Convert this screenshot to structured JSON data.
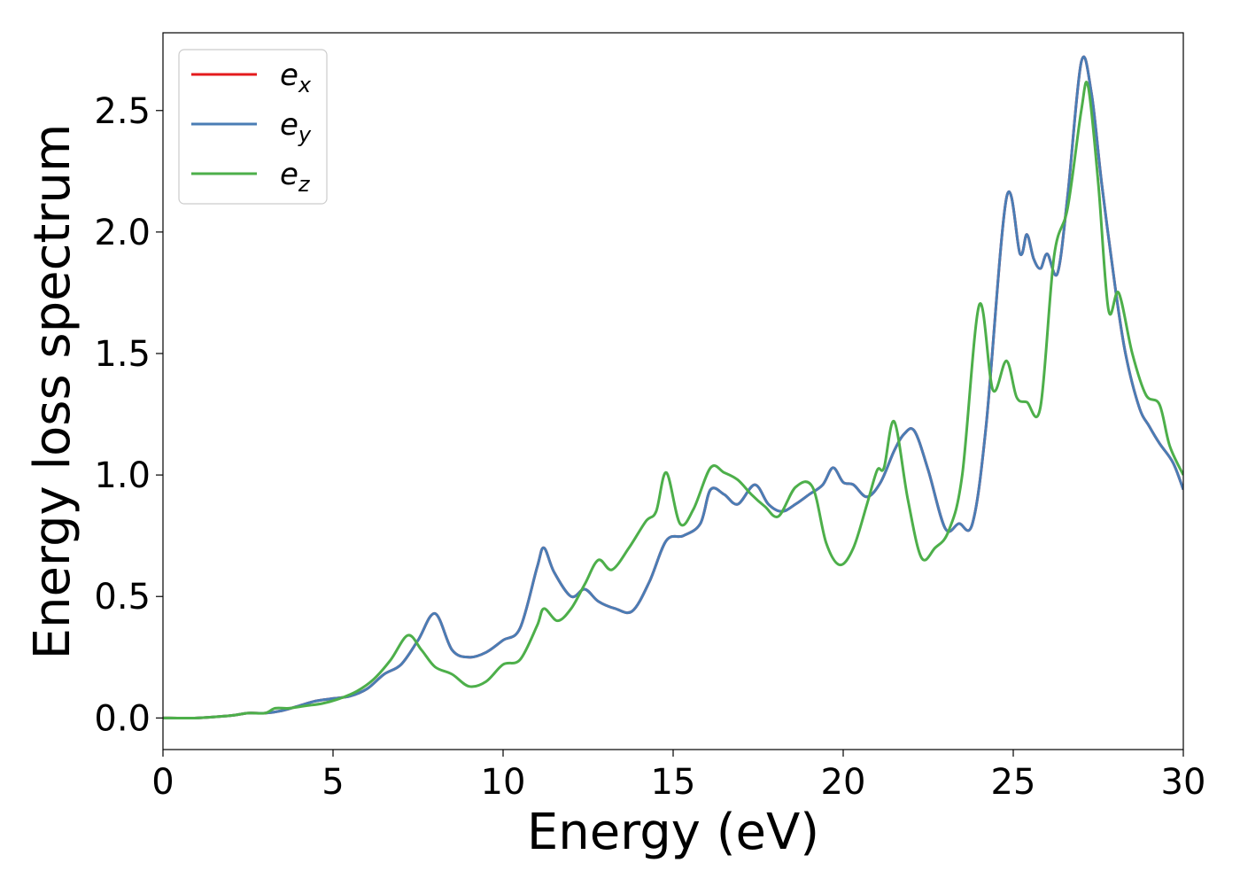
{
  "chart_data": {
    "type": "line",
    "xlabel": "Energy (eV)",
    "ylabel": "Energy loss spectrum",
    "xlim": [
      0,
      30
    ],
    "ylim": [
      -0.13,
      2.82
    ],
    "xticks": [
      0,
      5,
      10,
      15,
      20,
      25,
      30
    ],
    "xtick_labels": [
      "0",
      "5",
      "10",
      "15",
      "20",
      "25",
      "30"
    ],
    "yticks": [
      0.0,
      0.5,
      1.0,
      1.5,
      2.0,
      2.5
    ],
    "ytick_labels": [
      "0.0",
      "0.5",
      "1.0",
      "1.5",
      "2.0",
      "2.5"
    ],
    "grid": false,
    "legend_position": "top-left",
    "series": [
      {
        "name": "e",
        "subscript": "x",
        "color": "#e41a1c",
        "x": [
          0,
          1,
          2,
          2.5,
          3,
          3.5,
          4,
          4.5,
          5,
          5.5,
          6,
          6.5,
          7,
          7.5,
          8,
          8.5,
          9,
          9.5,
          10,
          10.5,
          11,
          11.2,
          11.5,
          12,
          12.4,
          12.8,
          13.3,
          13.8,
          14.3,
          14.8,
          15.3,
          15.8,
          16.1,
          16.5,
          16.9,
          17.4,
          17.8,
          18.2,
          18.6,
          19,
          19.4,
          19.7,
          20,
          20.3,
          20.7,
          21.1,
          21.5,
          21.8,
          22.1,
          22.5,
          23,
          23.4,
          23.8,
          24.2,
          24.8,
          25.2,
          25.4,
          25.6,
          25.8,
          26,
          26.3,
          26.6,
          27,
          27.3,
          27.6,
          28,
          28.3,
          28.7,
          29,
          29.3,
          29.7,
          30
        ],
        "values": [
          0,
          0,
          0.01,
          0.02,
          0.02,
          0.03,
          0.05,
          0.07,
          0.08,
          0.09,
          0.12,
          0.18,
          0.22,
          0.32,
          0.43,
          0.28,
          0.25,
          0.27,
          0.32,
          0.37,
          0.62,
          0.7,
          0.6,
          0.5,
          0.53,
          0.48,
          0.45,
          0.44,
          0.56,
          0.73,
          0.75,
          0.8,
          0.94,
          0.92,
          0.88,
          0.96,
          0.88,
          0.85,
          0.88,
          0.92,
          0.96,
          1.03,
          0.97,
          0.96,
          0.91,
          0.97,
          1.1,
          1.17,
          1.18,
          1.02,
          0.78,
          0.8,
          0.8,
          1.2,
          2.14,
          1.91,
          1.99,
          1.89,
          1.85,
          1.91,
          1.83,
          2.15,
          2.7,
          2.57,
          2.2,
          1.77,
          1.5,
          1.28,
          1.2,
          1.13,
          1.05,
          0.94
        ]
      },
      {
        "name": "e",
        "subscript": "y",
        "color": "#4a7db5",
        "x": [
          0,
          1,
          2,
          2.5,
          3,
          3.5,
          4,
          4.5,
          5,
          5.5,
          6,
          6.5,
          7,
          7.5,
          8,
          8.5,
          9,
          9.5,
          10,
          10.5,
          11,
          11.2,
          11.5,
          12,
          12.4,
          12.8,
          13.3,
          13.8,
          14.3,
          14.8,
          15.3,
          15.8,
          16.1,
          16.5,
          16.9,
          17.4,
          17.8,
          18.2,
          18.6,
          19,
          19.4,
          19.7,
          20,
          20.3,
          20.7,
          21.1,
          21.5,
          21.8,
          22.1,
          22.5,
          23,
          23.4,
          23.8,
          24.2,
          24.8,
          25.2,
          25.4,
          25.6,
          25.8,
          26,
          26.3,
          26.6,
          27,
          27.3,
          27.6,
          28,
          28.3,
          28.7,
          29,
          29.3,
          29.7,
          30
        ],
        "values": [
          0,
          0,
          0.01,
          0.02,
          0.02,
          0.03,
          0.05,
          0.07,
          0.08,
          0.09,
          0.12,
          0.18,
          0.22,
          0.32,
          0.43,
          0.28,
          0.25,
          0.27,
          0.32,
          0.37,
          0.62,
          0.7,
          0.6,
          0.5,
          0.53,
          0.48,
          0.45,
          0.44,
          0.56,
          0.73,
          0.75,
          0.8,
          0.94,
          0.92,
          0.88,
          0.96,
          0.88,
          0.85,
          0.88,
          0.92,
          0.96,
          1.03,
          0.97,
          0.96,
          0.91,
          0.97,
          1.1,
          1.17,
          1.18,
          1.02,
          0.78,
          0.8,
          0.8,
          1.2,
          2.14,
          1.91,
          1.99,
          1.89,
          1.85,
          1.91,
          1.83,
          2.15,
          2.7,
          2.57,
          2.2,
          1.77,
          1.5,
          1.28,
          1.2,
          1.13,
          1.05,
          0.94
        ]
      },
      {
        "name": "e",
        "subscript": "z",
        "color": "#4daf4a",
        "x": [
          0,
          1,
          2,
          2.5,
          3,
          3.3,
          3.7,
          4.2,
          4.7,
          5.2,
          5.7,
          6.2,
          6.7,
          7.2,
          7.6,
          8,
          8.5,
          9,
          9.5,
          10,
          10.5,
          11,
          11.2,
          11.6,
          12,
          12.4,
          12.8,
          13.2,
          13.7,
          14.2,
          14.5,
          14.8,
          15.2,
          15.6,
          16.1,
          16.5,
          16.9,
          17.3,
          17.7,
          18.1,
          18.6,
          19.1,
          19.5,
          19.9,
          20.3,
          20.7,
          21,
          21.2,
          21.5,
          21.9,
          22.3,
          22.7,
          23.1,
          23.5,
          24,
          24.4,
          24.8,
          25.1,
          25.4,
          25.8,
          26.2,
          26.6,
          27,
          27.2,
          27.5,
          27.8,
          28.1,
          28.5,
          28.9,
          29.3,
          29.6,
          30
        ],
        "values": [
          0,
          0,
          0.01,
          0.02,
          0.02,
          0.04,
          0.04,
          0.05,
          0.06,
          0.08,
          0.11,
          0.16,
          0.24,
          0.34,
          0.28,
          0.21,
          0.18,
          0.13,
          0.15,
          0.22,
          0.24,
          0.38,
          0.45,
          0.4,
          0.45,
          0.55,
          0.65,
          0.61,
          0.7,
          0.81,
          0.85,
          1.01,
          0.8,
          0.86,
          1.03,
          1.01,
          0.98,
          0.92,
          0.87,
          0.83,
          0.95,
          0.95,
          0.72,
          0.63,
          0.7,
          0.88,
          1.02,
          1.03,
          1.22,
          0.9,
          0.66,
          0.7,
          0.77,
          1.0,
          1.7,
          1.35,
          1.47,
          1.32,
          1.3,
          1.28,
          1.9,
          2.1,
          2.5,
          2.6,
          2.2,
          1.68,
          1.75,
          1.5,
          1.33,
          1.29,
          1.12,
          1.0
        ]
      }
    ]
  }
}
